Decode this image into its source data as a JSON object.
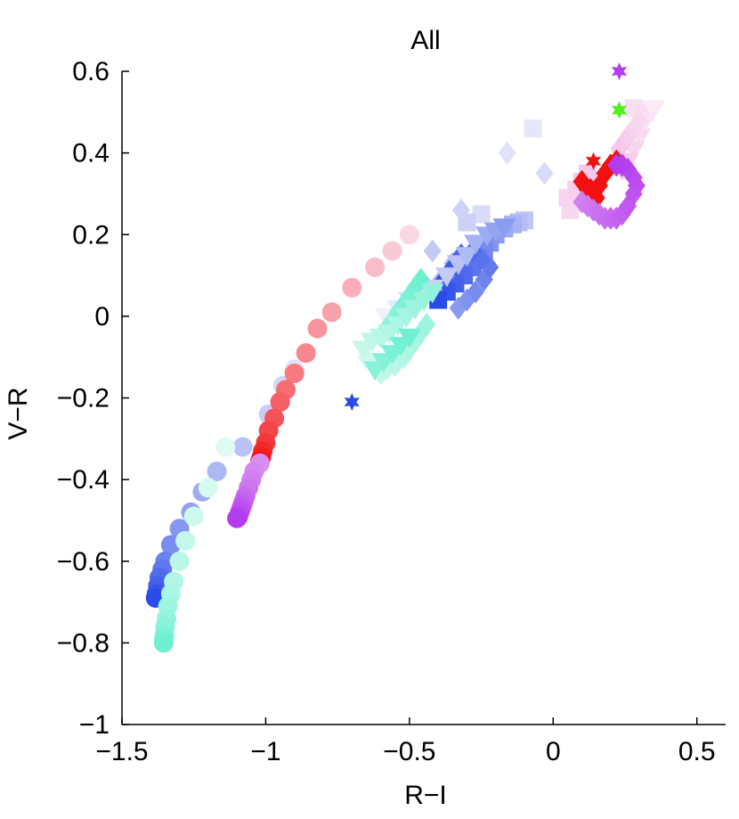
{
  "chart_data": {
    "type": "scatter",
    "title": "All",
    "xlabel": "R−I",
    "ylabel": "V−R",
    "xlim": [
      -1.5,
      0.6
    ],
    "ylim": [
      -1.0,
      0.6
    ],
    "xticks": [
      -1.5,
      -1.0,
      -0.5,
      0.0,
      0.5
    ],
    "xtick_labels": [
      "−1.5",
      "−1",
      "−0.5",
      "0",
      "0.5"
    ],
    "yticks": [
      -1.0,
      -0.8,
      -0.6,
      -0.4,
      -0.2,
      0.0,
      0.2,
      0.4,
      0.6
    ],
    "ytick_labels": [
      "−1",
      "−0.8",
      "−0.6",
      "−0.4",
      "−0.2",
      "0",
      "0.2",
      "0.4",
      "0.6"
    ],
    "grid": false,
    "colors": {
      "blue": "#2a4be8",
      "cyan": "#6ff0d2",
      "magenta": "#b43cf0",
      "red": "#f21010",
      "pink": "#f07aa8",
      "lavender": "#c8c8f5",
      "lightpink": "#f5c8ec",
      "green": "#4ff01c"
    },
    "series": [
      {
        "marker": "circle",
        "color_from": "#e2e2f8",
        "color_to": "#2a4be8",
        "x": [
          -0.9,
          -0.94,
          -0.99,
          -1.08,
          -1.17,
          -1.22,
          -1.26,
          -1.3,
          -1.33,
          -1.35,
          -1.36,
          -1.37,
          -1.375,
          -1.38,
          -1.383
        ],
        "y": [
          -0.13,
          -0.17,
          -0.24,
          -0.32,
          -0.38,
          -0.43,
          -0.48,
          -0.52,
          -0.56,
          -0.6,
          -0.62,
          -0.64,
          -0.66,
          -0.68,
          -0.69
        ]
      },
      {
        "marker": "circle",
        "color_from": "#e0fbf3",
        "color_to": "#6ff0d2",
        "x": [
          -1.14,
          -1.2,
          -1.25,
          -1.28,
          -1.3,
          -1.32,
          -1.33,
          -1.34,
          -1.345,
          -1.35,
          -1.352,
          -1.354,
          -1.355
        ],
        "y": [
          -0.32,
          -0.42,
          -0.49,
          -0.55,
          -0.6,
          -0.65,
          -0.68,
          -0.71,
          -0.74,
          -0.76,
          -0.78,
          -0.79,
          -0.8
        ]
      },
      {
        "marker": "circle",
        "color_from": "#fbd6e4",
        "color_to": "#f21010",
        "x": [
          -0.5,
          -0.56,
          -0.62,
          -0.7,
          -0.77,
          -0.82,
          -0.86,
          -0.9,
          -0.93,
          -0.95,
          -0.97,
          -0.99,
          -1.0,
          -1.01,
          -1.015,
          -1.02
        ],
        "y": [
          0.2,
          0.16,
          0.12,
          0.07,
          0.01,
          -0.03,
          -0.09,
          -0.14,
          -0.18,
          -0.21,
          -0.25,
          -0.28,
          -0.31,
          -0.33,
          -0.345,
          -0.355
        ]
      },
      {
        "marker": "circle",
        "color_from": "#d890f0",
        "color_to": "#b43cf0",
        "x": [
          -1.02,
          -1.04,
          -1.05,
          -1.06,
          -1.07,
          -1.075,
          -1.08,
          -1.085,
          -1.09,
          -1.095,
          -1.1
        ],
        "y": [
          -0.36,
          -0.38,
          -0.4,
          -0.42,
          -0.44,
          -0.45,
          -0.46,
          -0.47,
          -0.48,
          -0.49,
          -0.495
        ]
      },
      {
        "marker": "square",
        "color_from": "#e6e6fa",
        "color_to": "#2a4be8",
        "x": [
          -0.07,
          -0.25,
          -0.3,
          -0.1,
          -0.12,
          -0.14,
          -0.17,
          -0.2,
          -0.22,
          -0.24,
          -0.26,
          -0.28,
          -0.31,
          -0.34,
          -0.37,
          -0.4
        ],
        "y": [
          0.46,
          0.25,
          0.23,
          0.235,
          0.23,
          0.225,
          0.215,
          0.2,
          0.18,
          0.16,
          0.14,
          0.12,
          0.1,
          0.08,
          0.06,
          0.04
        ]
      },
      {
        "marker": "diamond",
        "color_from": "#e2e2f8",
        "color_to": "#2a4be8",
        "x": [
          -0.16,
          -0.03,
          -0.32,
          -0.42,
          -0.35,
          -0.37,
          -0.4,
          -0.44,
          -0.47,
          -0.33,
          -0.3,
          -0.27,
          -0.24,
          -0.22,
          -0.25,
          -0.28,
          -0.32,
          -0.35,
          -0.38,
          -0.41
        ],
        "y": [
          0.4,
          0.35,
          0.26,
          0.16,
          0.13,
          0.1,
          0.08,
          0.06,
          0.04,
          0.02,
          0.04,
          0.06,
          0.09,
          0.12,
          0.14,
          0.16,
          0.15,
          0.12,
          0.09,
          0.05
        ]
      },
      {
        "marker": "triangle-down",
        "color_from": "#f0f0fb",
        "color_to": "#8a9cf0",
        "x": [
          -0.58,
          -0.54,
          -0.5,
          -0.46,
          -0.42,
          -0.37,
          -0.33,
          -0.3,
          -0.27,
          -0.23,
          -0.2,
          -0.17
        ],
        "y": [
          0.0,
          0.02,
          0.04,
          0.05,
          0.07,
          0.1,
          0.13,
          0.15,
          0.18,
          0.2,
          0.21,
          0.22
        ]
      },
      {
        "marker": "diamond",
        "color_from": "#d0f8ee",
        "color_to": "#6ff0d2",
        "x": [
          -0.65,
          -0.62,
          -0.6,
          -0.58,
          -0.55,
          -0.52,
          -0.5,
          -0.48,
          -0.46,
          -0.44,
          -0.6,
          -0.58,
          -0.56,
          -0.54,
          -0.52,
          -0.5,
          -0.48,
          -0.46
        ],
        "y": [
          -0.1,
          -0.12,
          -0.14,
          -0.13,
          -0.12,
          -0.1,
          -0.08,
          -0.06,
          -0.04,
          -0.02,
          -0.05,
          -0.03,
          -0.01,
          0.01,
          0.03,
          0.05,
          0.07,
          0.09
        ]
      },
      {
        "marker": "triangle-down",
        "color_from": "#c8f8ea",
        "color_to": "#6ff0d2",
        "x": [
          -0.66,
          -0.63,
          -0.6,
          -0.57,
          -0.54,
          -0.51,
          -0.48,
          -0.45,
          -0.42,
          -0.62,
          -0.59,
          -0.56,
          -0.53,
          -0.5
        ],
        "y": [
          -0.08,
          -0.06,
          -0.05,
          -0.04,
          -0.02,
          0.0,
          0.02,
          0.04,
          0.06,
          -0.13,
          -0.11,
          -0.09,
          -0.07,
          -0.05
        ]
      },
      {
        "marker": "square",
        "color_from": "#f8e0f2",
        "color_to": "#f5c8ec",
        "x": [
          0.28,
          0.32,
          0.06,
          0.05,
          0.08,
          0.1,
          0.12
        ],
        "y": [
          0.51,
          0.5,
          0.26,
          0.29,
          0.31,
          0.33,
          0.35
        ]
      },
      {
        "marker": "triangle-down",
        "color_from": "#fbeaf6",
        "color_to": "#f5c8ec",
        "x": [
          0.35,
          0.32,
          0.3,
          0.28,
          0.26,
          0.24
        ],
        "y": [
          0.51,
          0.48,
          0.44,
          0.41,
          0.38,
          0.36
        ]
      },
      {
        "marker": "diamond",
        "color_from": "#f8d8f0",
        "color_to": "#f5c8ec",
        "x": [
          0.3,
          0.27,
          0.25,
          0.23
        ],
        "y": [
          0.48,
          0.45,
          0.43,
          0.41
        ]
      },
      {
        "marker": "diamond",
        "color_from": "#f21010",
        "color_to": "#f21010",
        "x": [
          0.1,
          0.12,
          0.14,
          0.16,
          0.18,
          0.2,
          0.22,
          0.24,
          0.15,
          0.13
        ],
        "y": [
          0.33,
          0.31,
          0.3,
          0.32,
          0.35,
          0.37,
          0.38,
          0.37,
          0.29,
          0.31
        ]
      },
      {
        "marker": "diamond",
        "color_from": "#d080f0",
        "color_to": "#b43cf0",
        "x": [
          0.1,
          0.12,
          0.14,
          0.16,
          0.18,
          0.2,
          0.22,
          0.24,
          0.26,
          0.28,
          0.29,
          0.28,
          0.26,
          0.24,
          0.22
        ],
        "y": [
          0.28,
          0.27,
          0.26,
          0.25,
          0.24,
          0.24,
          0.24,
          0.25,
          0.27,
          0.3,
          0.32,
          0.34,
          0.36,
          0.37,
          0.37
        ]
      },
      {
        "marker": "star",
        "color_from": "#2a4be8",
        "color_to": "#2a4be8",
        "x": [
          -0.7
        ],
        "y": [
          -0.21
        ]
      },
      {
        "marker": "star",
        "color_from": "#b43cf0",
        "color_to": "#b43cf0",
        "x": [
          0.23
        ],
        "y": [
          0.6
        ]
      },
      {
        "marker": "star",
        "color_from": "#4ff01c",
        "color_to": "#4ff01c",
        "x": [
          0.23
        ],
        "y": [
          0.505
        ]
      },
      {
        "marker": "star",
        "color_from": "#f21010",
        "color_to": "#f21010",
        "x": [
          0.14
        ],
        "y": [
          0.38
        ]
      }
    ]
  }
}
